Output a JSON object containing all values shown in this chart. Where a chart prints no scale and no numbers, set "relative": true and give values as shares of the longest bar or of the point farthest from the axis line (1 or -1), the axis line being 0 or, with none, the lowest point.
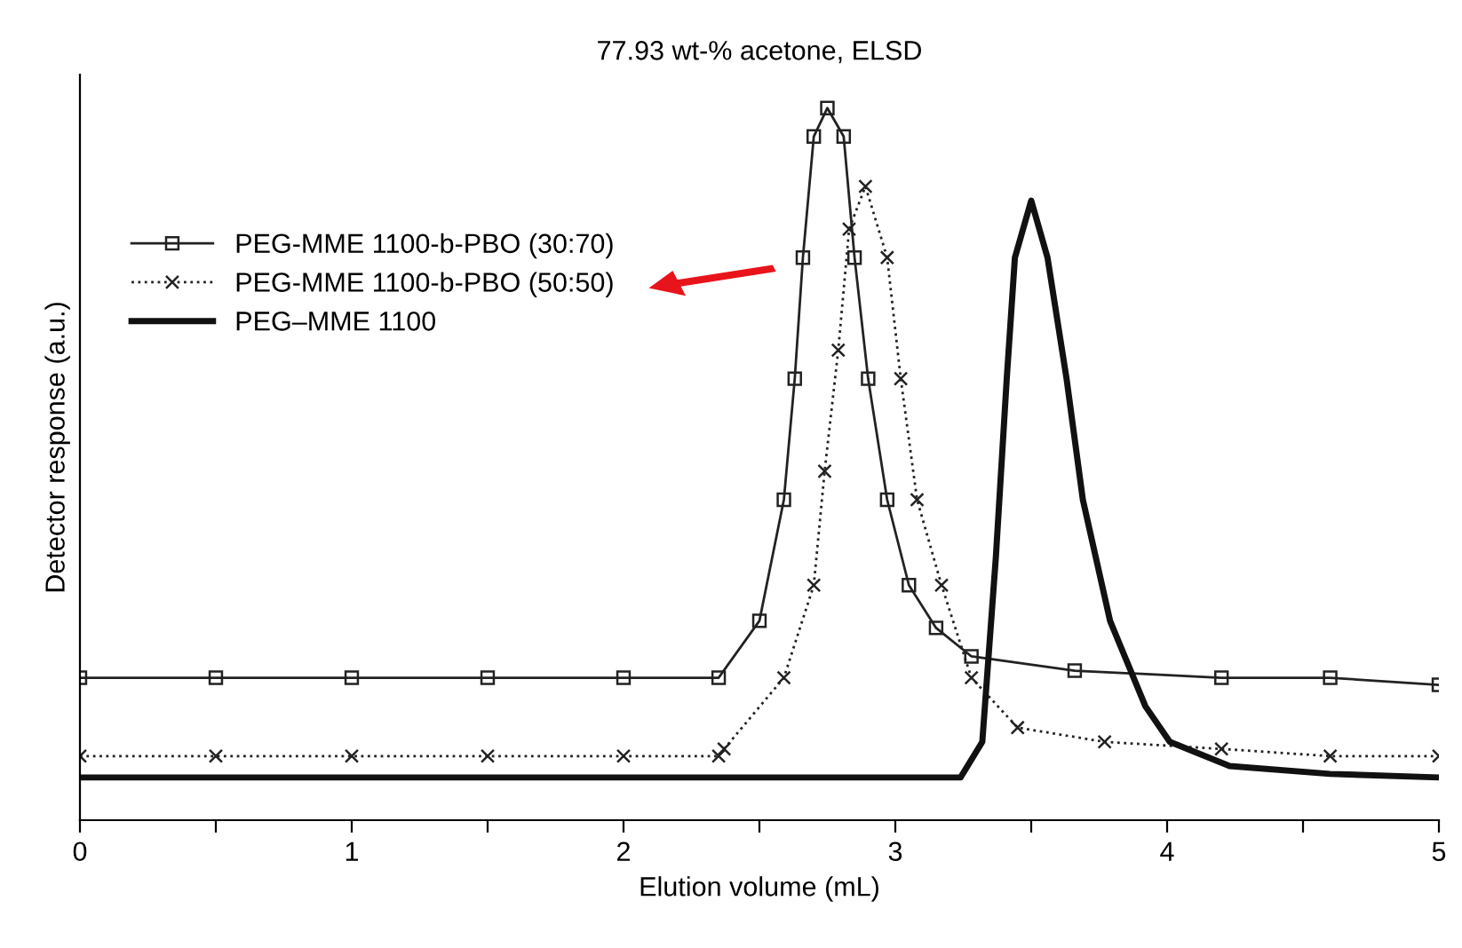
{
  "chart_data": {
    "type": "line",
    "title": "77.93 wt-% acetone, ELSD",
    "xlabel": "Elution volume (mL)",
    "ylabel": "Detector response (a.u.)",
    "relative": true,
    "xlim": [
      0,
      5
    ],
    "xticks": [
      0,
      {
        "value": 0.5,
        "label": null
      },
      1,
      {
        "value": 1.5,
        "label": null
      },
      2,
      {
        "value": 2.5,
        "label": null
      },
      3,
      {
        "value": 3.5,
        "label": null
      },
      4,
      {
        "value": 4.5,
        "label": null
      },
      5
    ],
    "grid": false,
    "legend": "top left",
    "series": [
      {
        "name": "PEG-MME 1100-b-PBO (30:70)",
        "color": "#222222",
        "marker": "square",
        "line_style": "solid",
        "x": [
          0,
          0.5,
          1,
          1.5,
          2,
          2.35,
          2.5,
          2.59,
          2.63,
          2.66,
          2.7,
          2.75,
          2.81,
          2.85,
          2.9,
          2.97,
          3.05,
          3.15,
          3.28,
          3.66,
          4.2,
          4.6,
          5
        ],
        "values": [
          0.2,
          0.2,
          0.2,
          0.2,
          0.2,
          0.2,
          0.28,
          0.45,
          0.62,
          0.79,
          0.96,
          1.0,
          0.96,
          0.79,
          0.62,
          0.45,
          0.33,
          0.27,
          0.23,
          0.21,
          0.2,
          0.2,
          0.19
        ]
      },
      {
        "name": "PEG-MME 1100-b-PBO (50:50)",
        "color": "#222222",
        "marker": "cross",
        "line_style": "dotted",
        "x": [
          0,
          0.5,
          1,
          1.5,
          2,
          2.35,
          2.37,
          2.59,
          2.7,
          2.74,
          2.79,
          2.83,
          2.89,
          2.97,
          3.02,
          3.08,
          3.17,
          3.28,
          3.45,
          3.77,
          4.2,
          4.6,
          5
        ],
        "values": [
          0.09,
          0.09,
          0.09,
          0.09,
          0.09,
          0.09,
          0.1,
          0.2,
          0.33,
          0.49,
          0.66,
          0.83,
          0.89,
          0.79,
          0.62,
          0.45,
          0.33,
          0.2,
          0.13,
          0.11,
          0.1,
          0.09,
          0.09
        ]
      },
      {
        "name": "PEG–MME 1100",
        "color": "#111111",
        "marker": "none",
        "line_style": "solid",
        "x": [
          0,
          1,
          2,
          3,
          3.24,
          3.32,
          3.37,
          3.41,
          3.44,
          3.5,
          3.56,
          3.63,
          3.69,
          3.79,
          3.92,
          4.01,
          4.23,
          4.6,
          5
        ],
        "values": [
          0.06,
          0.06,
          0.06,
          0.06,
          0.06,
          0.11,
          0.37,
          0.62,
          0.79,
          0.87,
          0.79,
          0.62,
          0.45,
          0.28,
          0.16,
          0.11,
          0.076,
          0.065,
          0.06
        ]
      }
    ]
  }
}
